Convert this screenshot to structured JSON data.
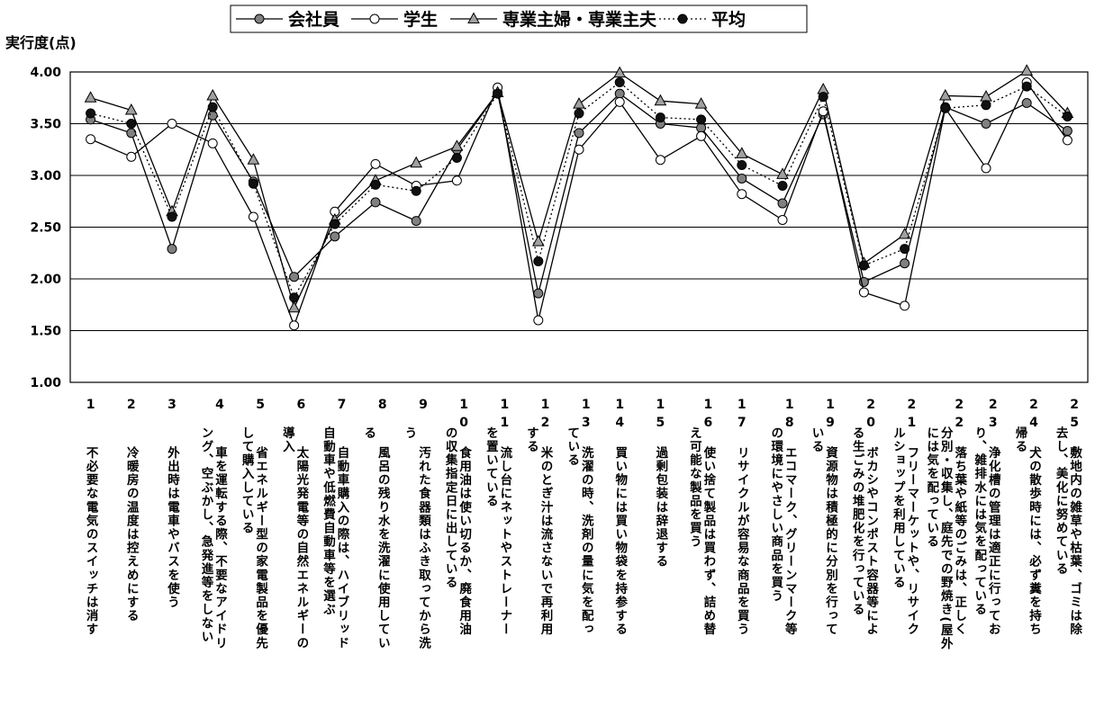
{
  "chart_data": {
    "type": "line",
    "title": "",
    "ylabel": "実行度(点)",
    "ylim": [
      1.0,
      4.0
    ],
    "yticks": [
      "1.00",
      "1.50",
      "2.00",
      "2.50",
      "3.00",
      "3.50",
      "4.00"
    ],
    "grid": true,
    "legend_position": "top",
    "categories": [
      "1 不必要な電気のスイッチは消す",
      "2 冷暖房の温度は控えめにする",
      "3 外出時は電車やバスを使う",
      "4 車を運転する際、不要なアイドリング、空ぶかし、急発進等をしない",
      "5 省エネルギー型の家電製品を優先して購入している",
      "6 太陽光発電等の自然エネルギーの導入",
      "7 自動車購入の際は、ハイブリッド自動車や低燃費自動車等を選ぶ",
      "8 風呂の残り水を洗濯に使用している",
      "9 汚れた食器類はふき取ってから洗う",
      "10 食用油は使い切るか、廃食用油の収集指定日に出している",
      "11 流し台にネットやストレーナーを置いている",
      "12 米のとぎ汁は流さないで再利用する",
      "13 洗濯の時、洗剤の量に気を配っている",
      "14 買い物には買い物袋を持参する",
      "15 過剰包装は辞退する",
      "16 使い捨て製品は買わず、詰め替え可能な製品を買う",
      "17 リサイクルが容易な商品を買う",
      "18 エコマーク、グリーンマーク等の環境にやさしい商品を買う",
      "19 資源物は積極的に分別を行っている",
      "20 ボカシやコンポスト容器等による生ごみの堆肥化を行っている",
      "21 フリーマーケットや、リサイクルショップを利用している",
      "22 落ち葉や紙等のごみは、正しく分別・収集し、庭先での野焼き(屋外)には気を配っている",
      "23 浄化槽の管理は適正に行っており、雑排水には気を配っている",
      "24 犬の散歩時には、必ず糞を持ち帰る",
      "25 敷地内の雑草や枯葉、ゴミは除去し、美化に努めている"
    ],
    "axis_numbers": [
      "1",
      "2",
      "3",
      "4",
      "5",
      "6",
      "7",
      "8",
      "9",
      "10",
      "11",
      "12",
      "13",
      "14",
      "15",
      "16",
      "17",
      "18",
      "19",
      "20",
      "21",
      "22",
      "23",
      "24",
      "25"
    ],
    "axis_texts": [
      [
        "不必要な電気のスイッチは消す"
      ],
      [
        "冷暖房の温度は控えめにする"
      ],
      [
        "外出時は電車やバスを使う"
      ],
      [
        "車を運転する際、不要なアイドリ",
        "ング、空ぶかし、急発進等をしない"
      ],
      [
        "省エネルギー型の家電製品を優先",
        "して購入している"
      ],
      [
        "太陽光発電等の自然エネルギーの",
        "導入"
      ],
      [
        "自動車購入の際は、ハイブリッド",
        "自動車や低燃費自動車等を選ぶ"
      ],
      [
        "風呂の残り水を洗濯に使用してい",
        "る"
      ],
      [
        "汚れた食器類はふき取ってから洗",
        "う"
      ],
      [
        "食用油は使い切るか、廃食用油",
        "の収集指定日に出している"
      ],
      [
        "流し台にネットやストレーナー",
        "を置いている"
      ],
      [
        "米のとぎ汁は流さないで再利用",
        "する"
      ],
      [
        "洗濯の時、洗剤の量に気を配っ",
        "ている"
      ],
      [
        "買い物には買い物袋を持参する"
      ],
      [
        "過剰包装は辞退する"
      ],
      [
        "使い捨て製品は買わず、詰め替",
        "え可能な製品を買う"
      ],
      [
        "リサイクルが容易な商品を買う"
      ],
      [
        "エコマーク、グリーンマーク等",
        "の環境にやさしい商品を買う"
      ],
      [
        "資源物は積極的に分別を行って",
        "いる"
      ],
      [
        "ボカシやコンポスト容器等によ",
        "る生ごみの堆肥化を行っている"
      ],
      [
        "フリーマーケットや、リサイク",
        "ルショップを利用している"
      ],
      [
        "落ち葉や紙等のごみは、正しく",
        "分別・収集し、庭先での野焼き(屋外",
        "には気を配っている"
      ],
      [
        "浄化槽の管理は適正に行ってお",
        "り、雑排水には気を配っている"
      ],
      [
        "犬の散歩時には、必ず糞を持ち",
        "帰る"
      ],
      [
        "敷地内の雑草や枯葉、ゴミは除",
        "去し、美化に努めている"
      ]
    ],
    "series": [
      {
        "name": "会社員",
        "marker": "circle-filled",
        "line": "solid",
        "color": "#808080",
        "values": [
          3.54,
          3.41,
          2.29,
          3.58,
          2.94,
          2.02,
          2.41,
          2.74,
          2.56,
          3.25,
          3.8,
          1.86,
          3.41,
          3.79,
          3.5,
          3.46,
          2.97,
          2.73,
          3.59,
          1.97,
          2.15,
          3.66,
          3.5,
          3.7,
          3.43
        ]
      },
      {
        "name": "学生",
        "marker": "circle-open",
        "line": "solid",
        "color": "#ffffff",
        "values": [
          3.35,
          3.18,
          3.5,
          3.31,
          2.6,
          1.55,
          2.65,
          3.11,
          2.9,
          2.95,
          3.85,
          1.6,
          3.25,
          3.71,
          3.15,
          3.38,
          2.82,
          2.57,
          3.62,
          1.87,
          1.74,
          3.65,
          3.07,
          3.9,
          3.34
        ]
      },
      {
        "name": "専業主婦・専業主夫",
        "marker": "triangle",
        "line": "solid",
        "color": "#a0a0a0",
        "values": [
          3.75,
          3.63,
          2.65,
          3.77,
          3.15,
          1.72,
          2.57,
          2.95,
          3.12,
          3.28,
          3.8,
          2.36,
          3.69,
          3.99,
          3.72,
          3.69,
          3.21,
          3.01,
          3.83,
          2.15,
          2.43,
          3.77,
          3.76,
          4.01,
          3.6
        ]
      },
      {
        "name": "平均",
        "marker": "circle-filled",
        "line": "dotted",
        "color": "#111111",
        "values": [
          3.6,
          3.5,
          2.6,
          3.66,
          2.92,
          1.82,
          2.53,
          2.91,
          2.85,
          3.17,
          3.79,
          2.17,
          3.6,
          3.9,
          3.56,
          3.54,
          3.1,
          2.9,
          3.76,
          2.13,
          2.29,
          3.65,
          3.68,
          3.86,
          3.57
        ]
      }
    ]
  }
}
